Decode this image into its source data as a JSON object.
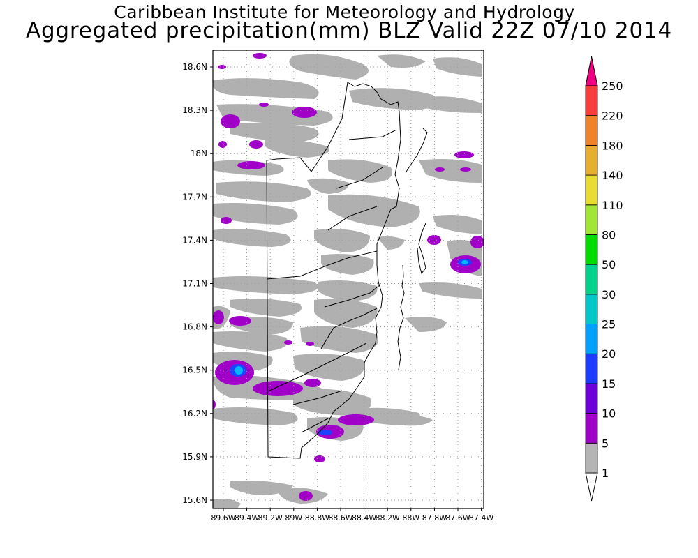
{
  "header": {
    "institution": "Caribbean Institute for Meteorology and Hydrology",
    "product": "Aggregated precipitation(mm) BLZ Valid 22Z 07/10 2014"
  },
  "map": {
    "lat_labels": [
      "18.6N",
      "18.3N",
      "18N",
      "17.7N",
      "17.4N",
      "17.1N",
      "16.8N",
      "16.5N",
      "16.2N",
      "15.9N",
      "15.6N"
    ],
    "lon_labels": [
      "89.6W",
      "89.4W",
      "89.2W",
      "89W",
      "88.8W",
      "88.6W",
      "88.4W",
      "88.2W",
      "88W",
      "87.8W",
      "87.6W",
      "87.4W"
    ],
    "precip_colors": {
      "light": "#b0b0b0",
      "mod": "#a000c8",
      "heavy": "#2040ff",
      "very_heavy": "#00b4ff"
    }
  },
  "colorbar": {
    "levels": [
      "1",
      "5",
      "10",
      "15",
      "20",
      "25",
      "30",
      "50",
      "80",
      "110",
      "140",
      "180",
      "220",
      "250"
    ],
    "colors": [
      "#b4b4b4",
      "#a000c8",
      "#6e00dc",
      "#1e3cff",
      "#00a0ff",
      "#00c8c8",
      "#00d28c",
      "#00dc00",
      "#a0e632",
      "#e6dc32",
      "#e6af2d",
      "#f08228",
      "#fa3c3c",
      "#f00082"
    ]
  }
}
